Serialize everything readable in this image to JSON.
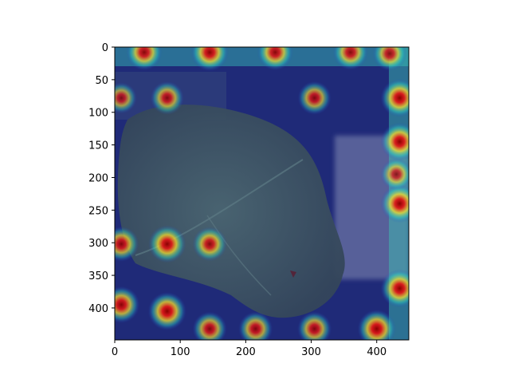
{
  "figure": {
    "image_description_kind": "leaf photograph with heatmap overlay",
    "colors": {
      "background": "#ffffff",
      "axis": "#000000",
      "image_backdrop": "#1f2a78",
      "leaf": "#3c5360",
      "heat_hot": "#c81414",
      "heat_warm": "#f0dc1e",
      "heat_mid": "#32c8b4"
    }
  },
  "chart_data": {
    "type": "heatmap",
    "xlim": [
      0,
      449
    ],
    "ylim": [
      449,
      0
    ],
    "x_ticks": [
      {
        "value": 0,
        "label": "0"
      },
      {
        "value": 100,
        "label": "100"
      },
      {
        "value": 200,
        "label": "200"
      },
      {
        "value": 300,
        "label": "300"
      },
      {
        "value": 400,
        "label": "400"
      }
    ],
    "y_ticks": [
      {
        "value": 0,
        "label": "0"
      },
      {
        "value": 50,
        "label": "50"
      },
      {
        "value": 100,
        "label": "100"
      },
      {
        "value": 150,
        "label": "150"
      },
      {
        "value": 200,
        "label": "200"
      },
      {
        "value": 250,
        "label": "250"
      },
      {
        "value": 300,
        "label": "300"
      },
      {
        "value": 350,
        "label": "350"
      },
      {
        "value": 400,
        "label": "400"
      }
    ],
    "hotspots": [
      {
        "x": 45,
        "y": 8,
        "intensity": 0.85
      },
      {
        "x": 145,
        "y": 8,
        "intensity": 0.95
      },
      {
        "x": 245,
        "y": 8,
        "intensity": 0.85
      },
      {
        "x": 360,
        "y": 8,
        "intensity": 0.8
      },
      {
        "x": 420,
        "y": 10,
        "intensity": 0.75
      },
      {
        "x": 10,
        "y": 78,
        "intensity": 0.55
      },
      {
        "x": 80,
        "y": 78,
        "intensity": 0.7
      },
      {
        "x": 305,
        "y": 78,
        "intensity": 0.7
      },
      {
        "x": 435,
        "y": 78,
        "intensity": 1.0
      },
      {
        "x": 435,
        "y": 145,
        "intensity": 1.0
      },
      {
        "x": 435,
        "y": 240,
        "intensity": 1.0
      },
      {
        "x": 430,
        "y": 195,
        "intensity": 0.6
      },
      {
        "x": 10,
        "y": 302,
        "intensity": 0.8
      },
      {
        "x": 80,
        "y": 302,
        "intensity": 0.95
      },
      {
        "x": 145,
        "y": 302,
        "intensity": 0.75
      },
      {
        "x": 435,
        "y": 370,
        "intensity": 1.0
      },
      {
        "x": 10,
        "y": 395,
        "intensity": 0.9
      },
      {
        "x": 80,
        "y": 405,
        "intensity": 1.0
      },
      {
        "x": 145,
        "y": 432,
        "intensity": 0.75
      },
      {
        "x": 215,
        "y": 432,
        "intensity": 0.75
      },
      {
        "x": 305,
        "y": 432,
        "intensity": 0.75
      },
      {
        "x": 400,
        "y": 432,
        "intensity": 1.0
      }
    ]
  }
}
